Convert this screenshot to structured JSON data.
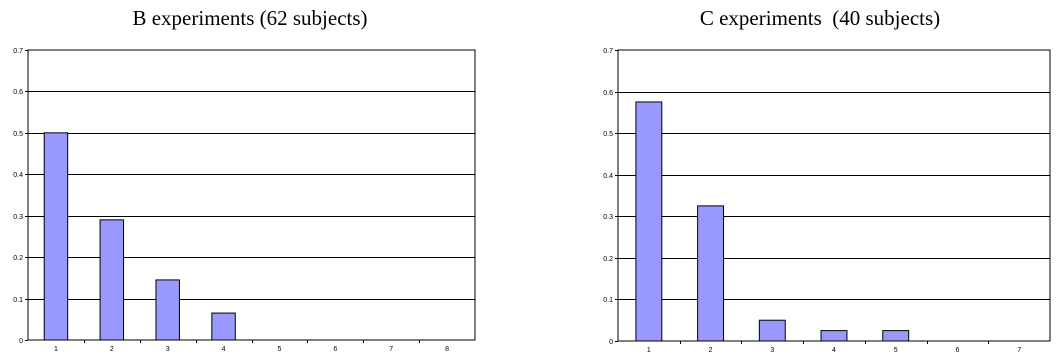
{
  "chart_data": [
    {
      "type": "bar",
      "title": "B experiments (62 subjects)",
      "categories": [
        "1",
        "2",
        "3",
        "4",
        "5",
        "6",
        "7",
        "8"
      ],
      "values": [
        0.5,
        0.29,
        0.145,
        0.065,
        0,
        0,
        0,
        0
      ],
      "yticks": [
        "0",
        "0.1",
        "0.2",
        "0.3",
        "0.4",
        "0.5",
        "0.6",
        "0.7"
      ],
      "ylim": [
        0,
        0.7
      ],
      "grid": true,
      "bar_color": "#9999ff",
      "xlabel": "",
      "ylabel": ""
    },
    {
      "type": "bar",
      "title": "C experiments  (40 subjects)",
      "categories": [
        "1",
        "2",
        "3",
        "4",
        "5",
        "6",
        "7"
      ],
      "values": [
        0.575,
        0.325,
        0.05,
        0.025,
        0.025,
        0,
        0
      ],
      "yticks": [
        "0",
        "0.1",
        "0.2",
        "0.3",
        "0.4",
        "0.5",
        "0.6",
        "0.7"
      ],
      "ylim": [
        0,
        0.7
      ],
      "grid": true,
      "bar_color": "#9999ff",
      "xlabel": "",
      "ylabel": ""
    }
  ]
}
